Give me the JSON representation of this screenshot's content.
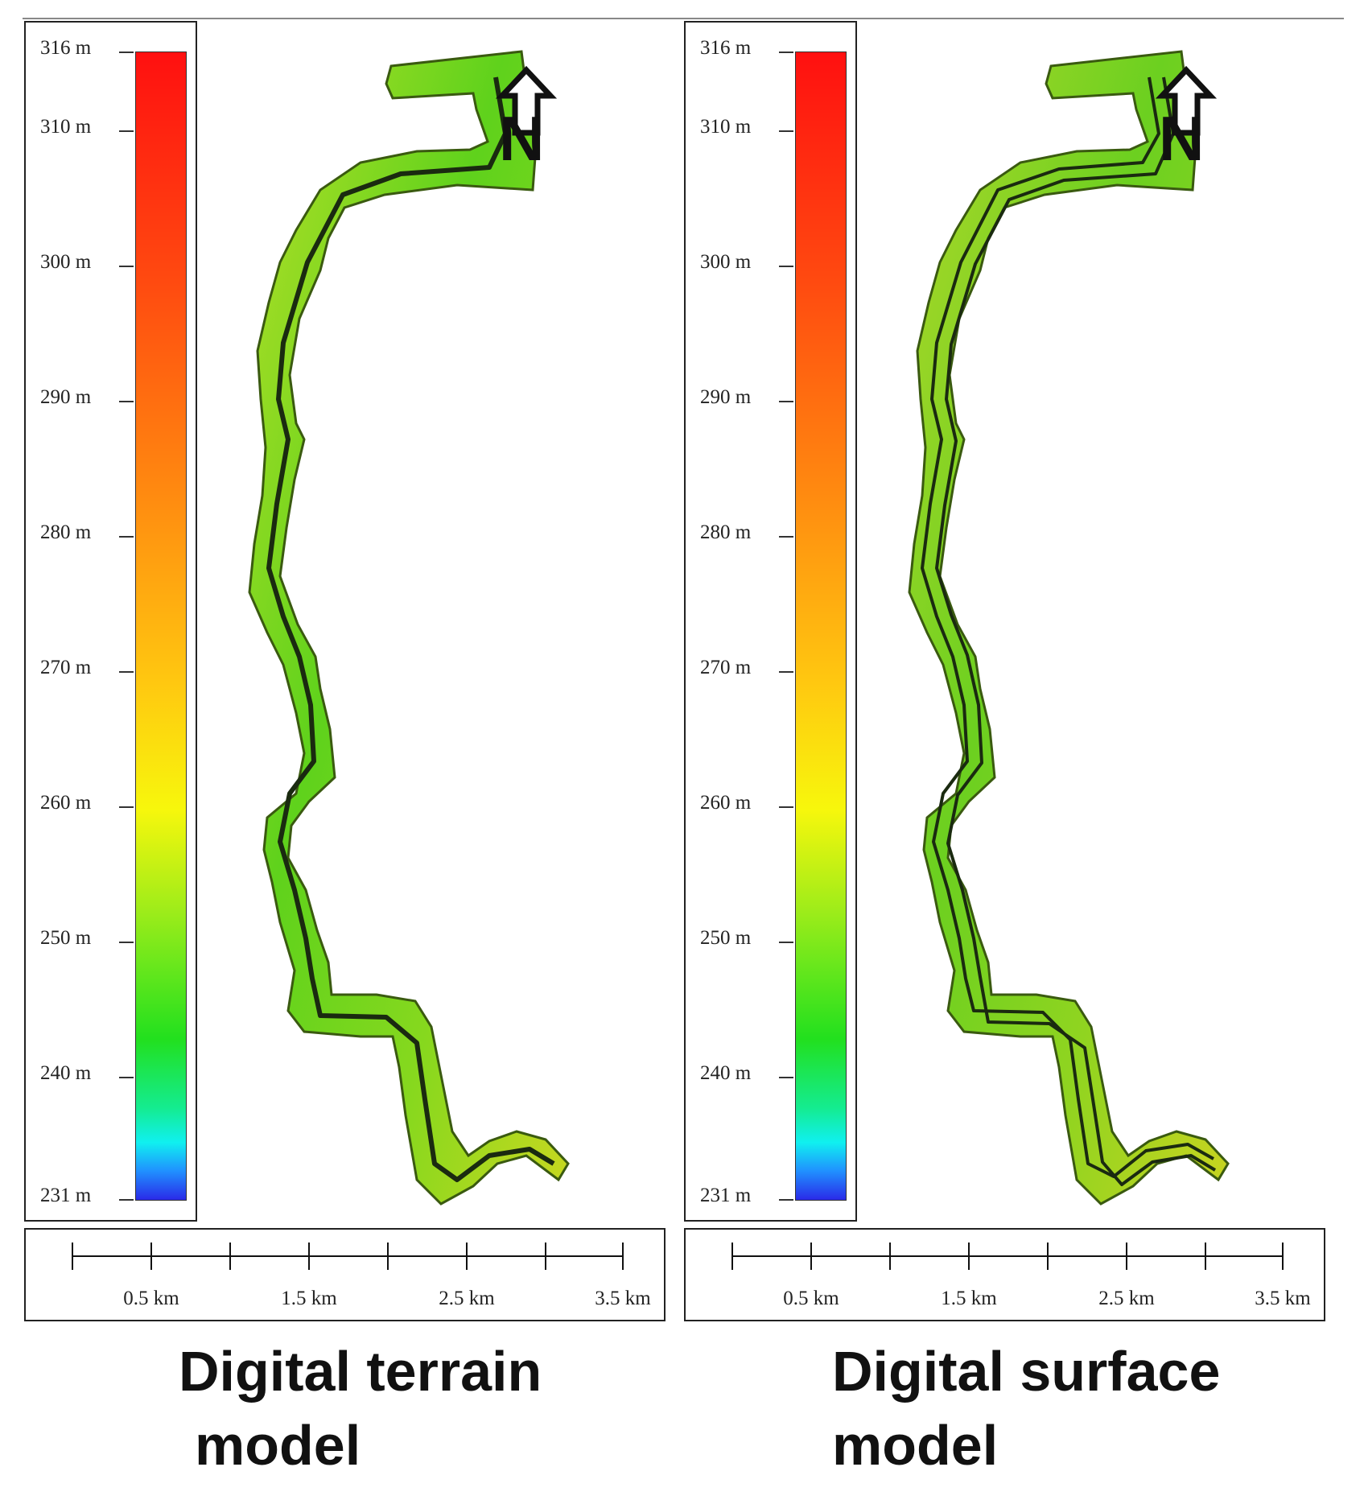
{
  "panels": [
    {
      "id": "terrain",
      "legend": {
        "ticks": [
          "316 m",
          "310 m",
          "300 m",
          "290 m",
          "280 m",
          "270 m",
          "260 m",
          "250 m",
          "240 m",
          "231 m"
        ],
        "min_m": 231,
        "max_m": 316
      },
      "scale_bar": {
        "labels": [
          "0.5 km",
          "1.5 km",
          "2.5 km",
          "3.5 km"
        ]
      },
      "north_label": "N",
      "caption": {
        "line1": "Digital terrain",
        "line2": "model"
      }
    },
    {
      "id": "surface",
      "legend": {
        "ticks": [
          "316 m",
          "310 m",
          "300 m",
          "290 m",
          "280 m",
          "270 m",
          "260 m",
          "250 m",
          "240 m",
          "231 m"
        ],
        "min_m": 231,
        "max_m": 316
      },
      "scale_bar": {
        "labels": [
          "0.5 km",
          "1.5 km",
          "2.5 km",
          "3.5 km"
        ]
      },
      "north_label": "N",
      "caption": {
        "line1": "Digital surface",
        "line2": "model"
      }
    }
  ],
  "colors": {
    "elevation_high": "#ff1010",
    "elevation_mid": "#f7f70c",
    "elevation_green": "#22e01e",
    "elevation_low": "#2a2ae8",
    "river_channel": "#1a2a10",
    "strip_fill": "#7ed31e"
  }
}
